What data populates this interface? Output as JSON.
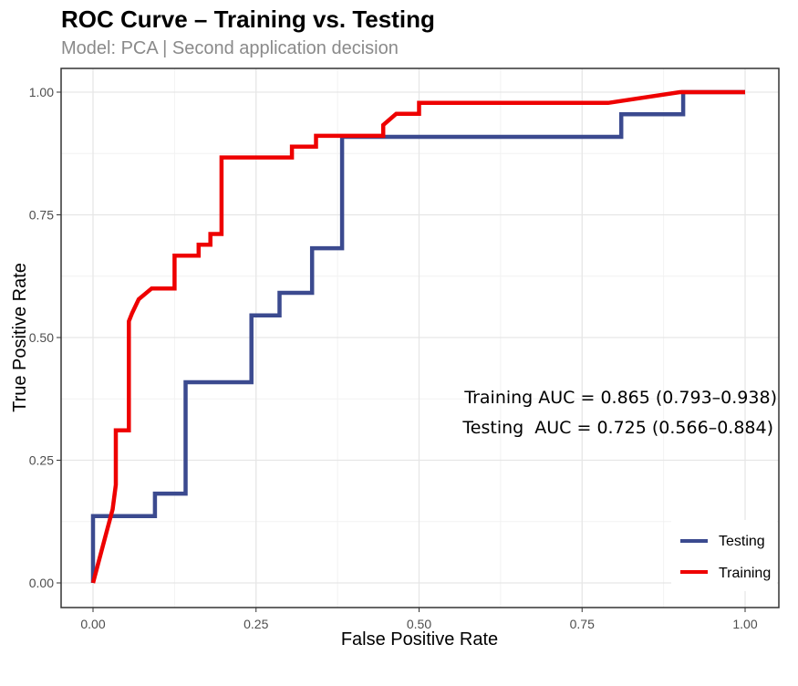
{
  "chart_data": {
    "type": "line",
    "title": "ROC Curve – Training vs. Testing",
    "subtitle": "Model: PCA | Second application decision",
    "xlabel": "False Positive Rate",
    "ylabel": "True Positive Rate",
    "xlim": [
      0,
      1
    ],
    "ylim": [
      0,
      1
    ],
    "xticks": [
      0,
      0.25,
      0.5,
      0.75,
      1
    ],
    "yticks": [
      0,
      0.25,
      0.5,
      0.75,
      1
    ],
    "xtick_labels": [
      "0.00",
      "0.25",
      "0.50",
      "0.75",
      "1.00"
    ],
    "ytick_labels": [
      "0.00",
      "0.25",
      "0.50",
      "0.75",
      "1.00"
    ],
    "grid": true,
    "legend_position": "bottom-right",
    "annotations": [
      "Training AUC = 0.865 (0.793–0.938)",
      "Testing  AUC = 0.725 (0.566–0.884)"
    ],
    "series": [
      {
        "name": "Testing",
        "color": "#3B4A8F",
        "x": [
          0,
          0,
          0.095,
          0.095,
          0.142,
          0.142,
          0.192,
          0.192,
          0.2,
          0.2,
          0.243,
          0.243,
          0.262,
          0.262,
          0.286,
          0.286,
          0.336,
          0.336,
          0.382,
          0.382,
          0.52,
          0.8,
          0.81,
          0.81,
          0.905,
          0.905,
          1.0
        ],
        "y": [
          0,
          0.136,
          0.136,
          0.182,
          0.182,
          0.409,
          0.409,
          0.409,
          0.409,
          0.409,
          0.409,
          0.545,
          0.545,
          0.545,
          0.545,
          0.591,
          0.591,
          0.682,
          0.682,
          0.909,
          0.909,
          0.909,
          0.909,
          0.955,
          0.955,
          1.0,
          1.0
        ]
      },
      {
        "name": "Training",
        "color": "#EE0000",
        "x": [
          0,
          0.02,
          0.03,
          0.035,
          0.035,
          0.055,
          0.055,
          0.06,
          0.07,
          0.09,
          0.125,
          0.125,
          0.162,
          0.162,
          0.18,
          0.18,
          0.197,
          0.197,
          0.305,
          0.305,
          0.342,
          0.342,
          0.445,
          0.445,
          0.465,
          0.5,
          0.5,
          0.79,
          0.9,
          1.0
        ],
        "y": [
          0,
          0.1,
          0.15,
          0.2,
          0.311,
          0.311,
          0.533,
          0.55,
          0.578,
          0.6,
          0.6,
          0.667,
          0.667,
          0.689,
          0.689,
          0.711,
          0.711,
          0.867,
          0.867,
          0.889,
          0.889,
          0.911,
          0.911,
          0.933,
          0.956,
          0.956,
          0.978,
          0.978,
          1.0,
          1.0
        ]
      }
    ]
  }
}
